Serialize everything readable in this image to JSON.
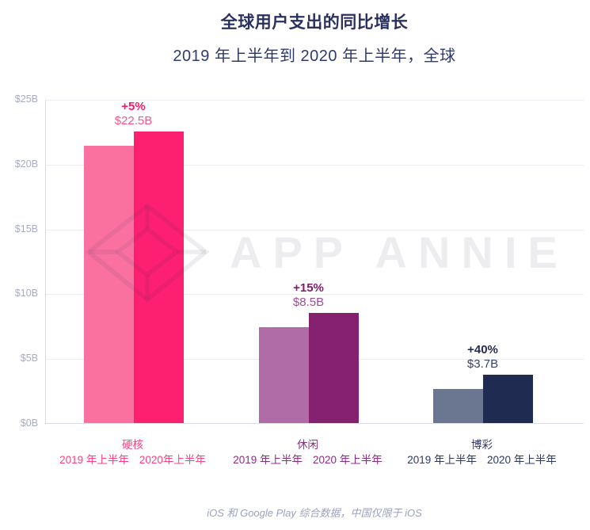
{
  "page": {
    "background": "#FFFFFF"
  },
  "header": {
    "title": "全球用户支出的同比增长",
    "subtitle": "2019 年上半年到 2020 年上半年，全球",
    "title_color": "#2A3160",
    "subtitle_color": "#2F3C6B"
  },
  "watermark": {
    "brand_text": "APP ANNIE",
    "icon": "gem-diamond",
    "color": "#E9EAEE"
  },
  "footer": {
    "note": "iOS 和 Google Play 综合数据，中国仅限于 iOS"
  },
  "chart_data": {
    "type": "bar",
    "title": "全球用户支出的同比增长",
    "subtitle": "2019 年上半年到 2020 年上半年，全球",
    "unit": "USD billions ($B)",
    "ylim": [
      0,
      25
    ],
    "ytick_step": 5,
    "ytick_labels": [
      "$0B",
      "$5B",
      "$10B",
      "$15B",
      "$20B",
      "$25B"
    ],
    "grid": true,
    "legend_position": "none",
    "axis_label_color": "#A4ACC6",
    "gridline_color": "#EDEEF3",
    "axis_line_color": "#DADDE6",
    "groups": [
      {
        "category": "硬核",
        "growth_pct": "+5%",
        "value_label": "$22.5B",
        "pct_color": "#F9196B",
        "value_color": "#F9568D",
        "tick_color": "#FA4182",
        "bars": [
          {
            "period": "2019 年上半年",
            "value": 21.4,
            "color": "#FA71A0"
          },
          {
            "period": "2020年上半年",
            "value": 22.5,
            "color": "#FD1F70"
          }
        ]
      },
      {
        "category": "休闲",
        "growth_pct": "+15%",
        "value_label": "$8.5B",
        "pct_color": "#7C1E68",
        "value_color": "#9A4E94",
        "tick_color": "#8C2C83",
        "bars": [
          {
            "period": "2019 年上半年",
            "value": 7.4,
            "color": "#B06CA6"
          },
          {
            "period": "2020 年上半年",
            "value": 8.5,
            "color": "#862170"
          }
        ]
      },
      {
        "category": "博彩",
        "growth_pct": "+40%",
        "value_label": "$3.7B",
        "pct_color": "#242C52",
        "value_color": "#374163",
        "tick_color": "#2C3860",
        "bars": [
          {
            "period": "2019 年上半年",
            "value": 2.65,
            "color": "#6B7791"
          },
          {
            "period": "2020 年上半年",
            "value": 3.7,
            "color": "#202B52"
          }
        ]
      }
    ]
  }
}
